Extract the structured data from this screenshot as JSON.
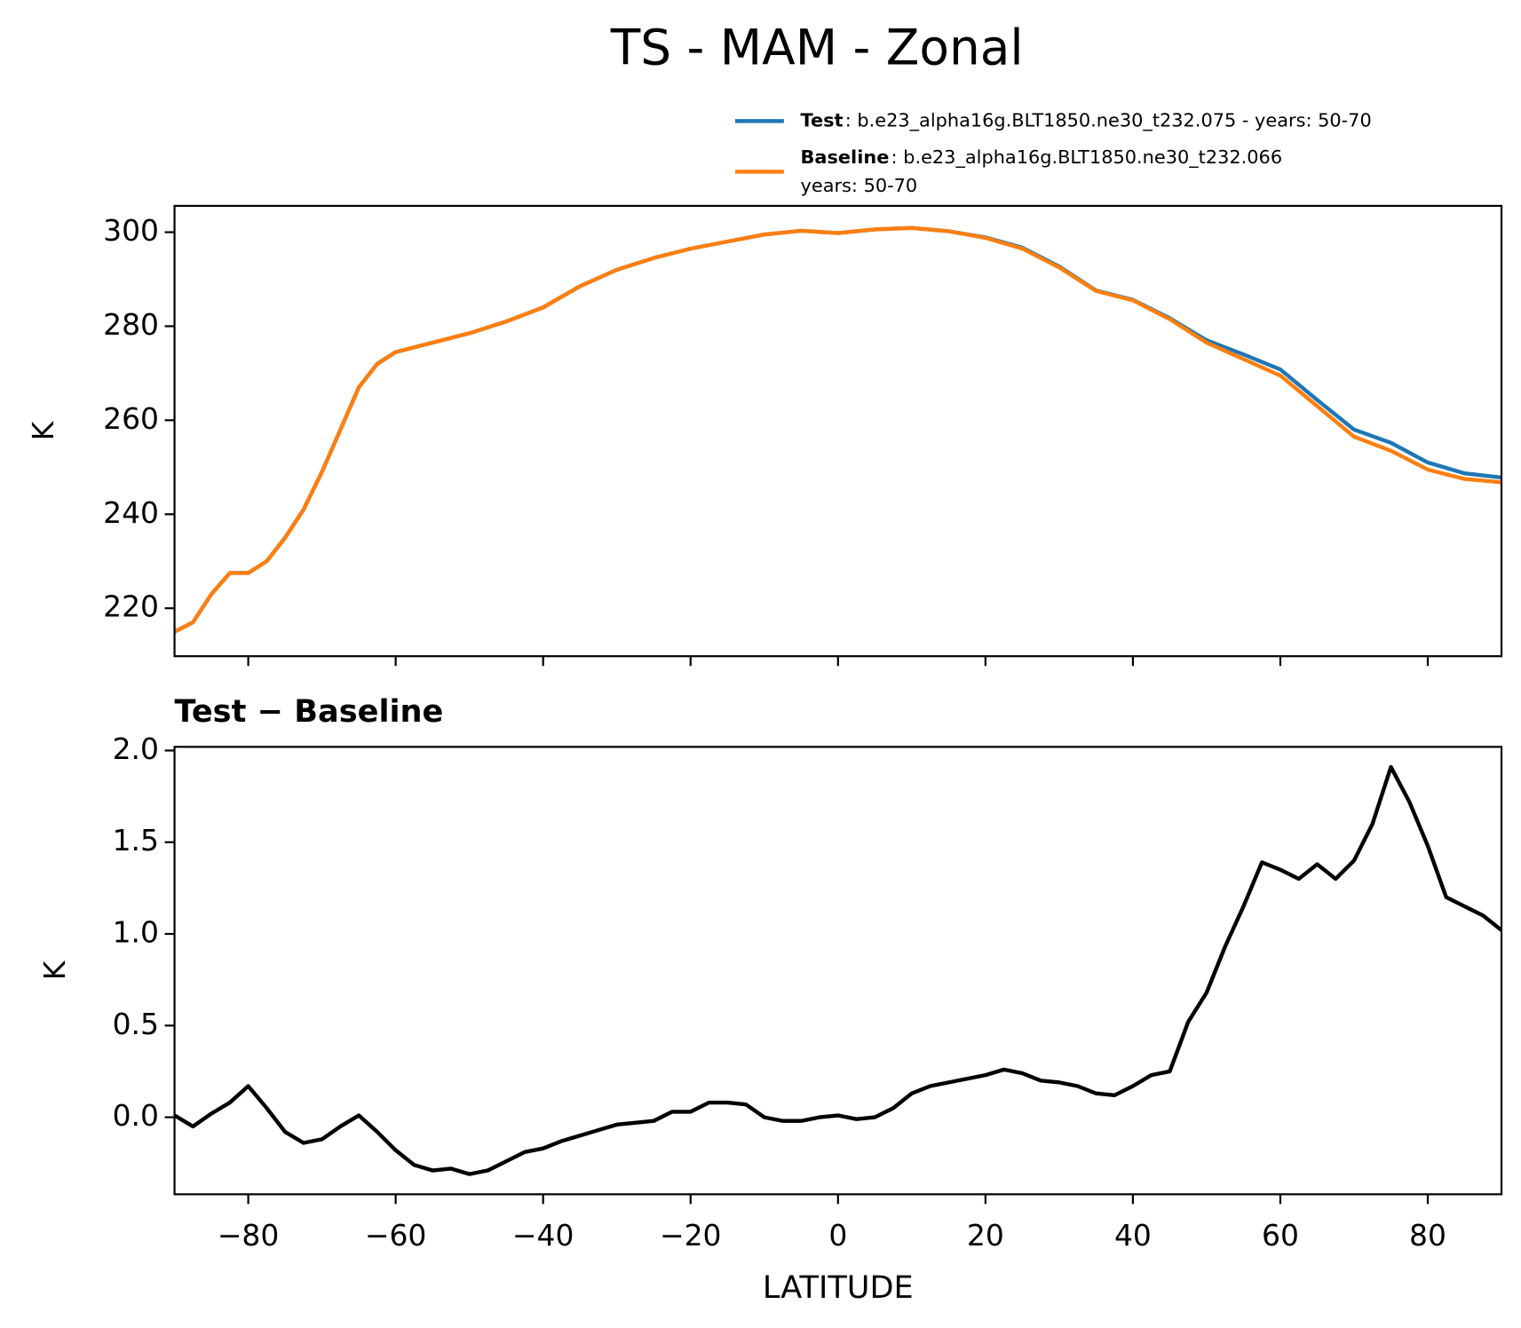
{
  "title": "TS - MAM - Zonal",
  "chart_data": [
    {
      "type": "line",
      "ylabel": "K",
      "x": [
        -90,
        -87.5,
        -85,
        -82.5,
        -80,
        -77.5,
        -75,
        -72.5,
        -70,
        -67.5,
        -65,
        -62.5,
        -60,
        -55,
        -50,
        -45,
        -40,
        -35,
        -30,
        -25,
        -20,
        -15,
        -10,
        -5,
        0,
        5,
        10,
        15,
        20,
        25,
        30,
        35,
        40,
        45,
        50,
        55,
        60,
        65,
        70,
        75,
        80,
        85,
        90
      ],
      "series": [
        {
          "name": "Test",
          "description": [
            ": b.e23_alpha16g.BLT1850.ne30_t232.075 - years: 50-70"
          ],
          "color": "#1f77b4",
          "values": [
            215,
            217,
            223,
            227.5,
            227.5,
            230,
            235,
            241,
            249,
            258,
            267,
            272,
            274.5,
            276.5,
            278.5,
            281,
            284,
            288.5,
            292,
            294.5,
            296.5,
            298,
            299.5,
            300.3,
            299.8,
            300.6,
            300.9,
            300.2,
            298.9,
            296.7,
            292.7,
            287.6,
            285.6,
            281.7,
            277,
            274,
            270.8,
            264.3,
            258,
            255.2,
            251,
            248.7,
            247.8
          ]
        },
        {
          "name": "Baseline",
          "description": [
            ": b.e23_alpha16g.BLT1850.ne30_t232.066",
            "years: 50-70"
          ],
          "color": "#ff7f0e",
          "values": [
            215,
            217,
            223,
            227.5,
            227.5,
            230,
            235,
            241,
            249,
            258,
            267,
            272,
            274.5,
            276.5,
            278.5,
            281,
            284,
            288.5,
            292,
            294.5,
            296.5,
            298,
            299.5,
            300.3,
            299.8,
            300.6,
            300.9,
            300.2,
            298.8,
            296.5,
            292.5,
            287.5,
            285.5,
            281.5,
            276.5,
            273,
            269.5,
            263,
            256.5,
            253.5,
            249.5,
            247.5,
            246.8
          ]
        }
      ],
      "xlim": [
        -90,
        90
      ],
      "xticks": [
        -80,
        -60,
        -40,
        -20,
        0,
        20,
        40,
        60,
        80
      ],
      "ylim": [
        209.8,
        305.6
      ],
      "yticks": [
        220,
        240,
        260,
        280,
        300
      ]
    },
    {
      "type": "line",
      "title": "Test − Baseline",
      "xlabel": "LATITUDE",
      "ylabel": "K",
      "x": [
        -90,
        -87.5,
        -85,
        -82.5,
        -80,
        -77.5,
        -75,
        -72.5,
        -70,
        -67.5,
        -65,
        -62.5,
        -60,
        -57.5,
        -55,
        -52.5,
        -50,
        -47.5,
        -45,
        -42.5,
        -40,
        -37.5,
        -35,
        -32.5,
        -30,
        -27.5,
        -25,
        -22.5,
        -20,
        -17.5,
        -15,
        -12.5,
        -10,
        -7.5,
        -5,
        -2.5,
        0,
        2.5,
        5,
        7.5,
        10,
        12.5,
        15,
        17.5,
        20,
        22.5,
        25,
        27.5,
        30,
        32.5,
        35,
        37.5,
        40,
        42.5,
        45,
        47.5,
        50,
        52.5,
        55,
        57.5,
        60,
        62.5,
        65,
        67.5,
        70,
        72.5,
        75,
        77.5,
        80,
        82.5,
        85,
        87.5,
        90
      ],
      "series": [
        {
          "color": "#000000",
          "values": [
            0.01,
            -0.05,
            0.02,
            0.08,
            0.17,
            0.05,
            -0.08,
            -0.14,
            -0.12,
            -0.05,
            0.01,
            -0.08,
            -0.18,
            -0.26,
            -0.29,
            -0.28,
            -0.31,
            -0.29,
            -0.24,
            -0.19,
            -0.17,
            -0.13,
            -0.1,
            -0.07,
            -0.04,
            -0.03,
            -0.02,
            0.03,
            0.03,
            0.08,
            0.08,
            0.07,
            0.0,
            -0.02,
            -0.02,
            0.0,
            0.01,
            -0.01,
            0.0,
            0.05,
            0.13,
            0.17,
            0.19,
            0.21,
            0.23,
            0.26,
            0.24,
            0.2,
            0.19,
            0.17,
            0.13,
            0.12,
            0.17,
            0.23,
            0.25,
            0.52,
            0.68,
            0.93,
            1.15,
            1.39,
            1.35,
            1.3,
            1.38,
            1.3,
            1.4,
            1.6,
            1.91,
            1.72,
            1.48,
            1.2,
            1.15,
            1.1,
            1.02
          ]
        }
      ],
      "xlim": [
        -90,
        90
      ],
      "xticks": [
        {
          "value": -80,
          "label": "−80"
        },
        {
          "value": -60,
          "label": "−60"
        },
        {
          "value": -40,
          "label": "−40"
        },
        {
          "value": -20,
          "label": "−20"
        },
        0,
        20,
        40,
        60,
        80
      ],
      "ylim": [
        -0.42,
        2.02
      ],
      "yticks": [
        {
          "value": 0,
          "label": "0.0"
        },
        0.5,
        {
          "value": 1,
          "label": "1.0"
        },
        1.5,
        {
          "value": 2,
          "label": "2.0"
        }
      ]
    }
  ]
}
